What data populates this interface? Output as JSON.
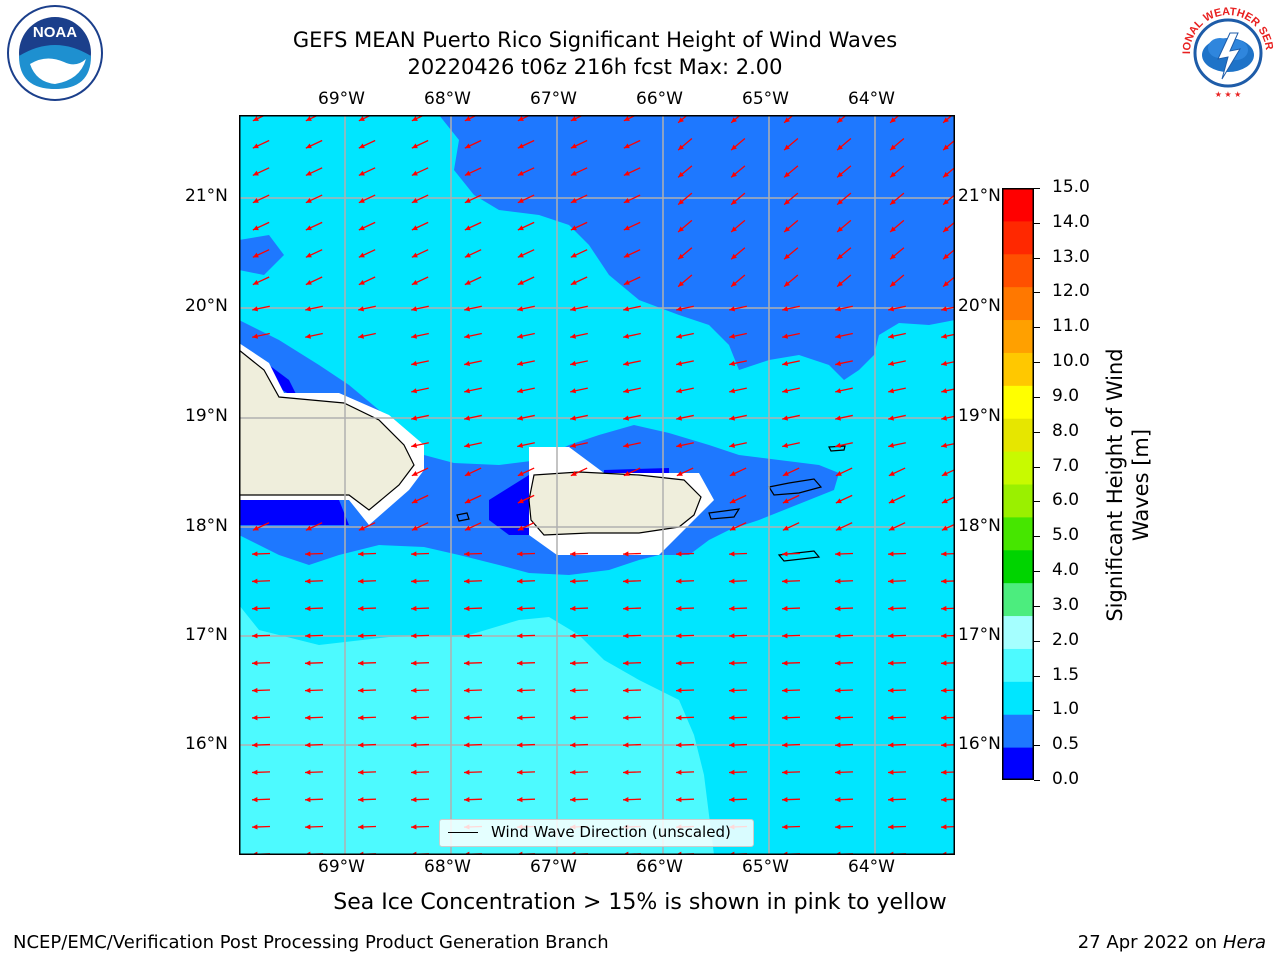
{
  "title": {
    "line1": "GEFS MEAN Puerto Rico Significant Height of Wind Waves",
    "line2": "20220426 t06z 216h fcst   Max: 2.00"
  },
  "axes": {
    "lon_labels": [
      "69°W",
      "68°W",
      "67°W",
      "66°W",
      "65°W",
      "64°W"
    ],
    "lat_labels": [
      "21°N",
      "20°N",
      "19°N",
      "18°N",
      "17°N",
      "16°N"
    ]
  },
  "colorbar": {
    "label": "Significant Height of Wind Waves [m]",
    "ticks": [
      "15.0",
      "14.0",
      "13.0",
      "12.0",
      "11.0",
      "10.0",
      "9.0",
      "8.0",
      "7.0",
      "6.0",
      "5.0",
      "4.0",
      "3.0",
      "2.0",
      "1.5",
      "1.0",
      "0.5",
      "0.0"
    ],
    "colors": [
      "#0000ff",
      "#1e78ff",
      "#00e6ff",
      "#4dfaff",
      "#a5ffff",
      "#4ced7e",
      "#00d400",
      "#46e600",
      "#9af000",
      "#c8fa00",
      "#e6e600",
      "#ffff00",
      "#ffc800",
      "#ffa000",
      "#ff7800",
      "#ff5000",
      "#ff2800",
      "#ff0000"
    ]
  },
  "legend": {
    "text": "Wind Wave Direction (unscaled)"
  },
  "sea_ice_note": "Sea Ice Concentration > 15% is shown in pink to yellow",
  "footer": {
    "left": "NCEP/EMC/Verification Post Processing Product Generation Branch",
    "right_prefix": "27 Apr 2022 on ",
    "right_host": "Hera"
  },
  "logos": {
    "noaa": "NOAA",
    "nws": "NATIONAL WEATHER SERVICE"
  },
  "map_colors": {
    "band_0_05": "#0000ff",
    "band_05_10": "#1e78ff",
    "band_10_15": "#00e6ff",
    "band_15_20": "#4dfaff",
    "land": "#efeedc",
    "arrow": "#ff0000",
    "grid": "#b0b0b0"
  }
}
